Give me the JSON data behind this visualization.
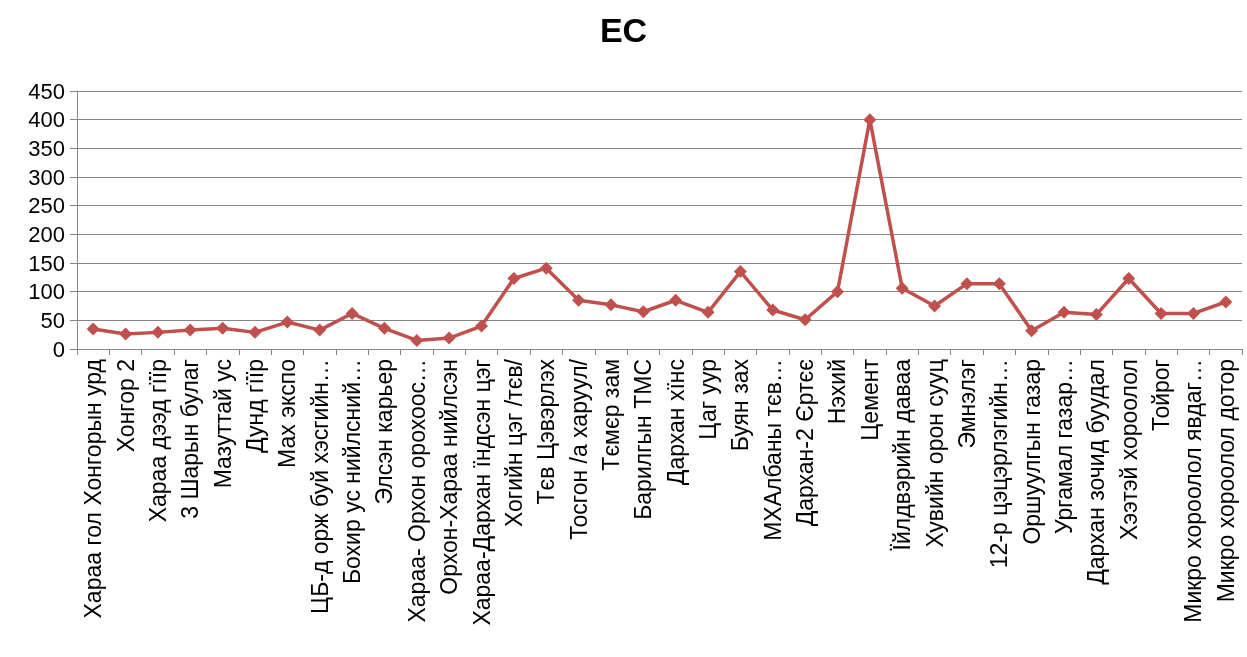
{
  "chart_data": {
    "type": "line",
    "title": "EC",
    "categories": [
      "Хараа гол Хонгорын урд",
      "Хонгор 2",
      "Хараа дээд гїїр",
      "3 Шарын булаг",
      "Мазуттай ус",
      "Дунд гїїр",
      "Мах экспо",
      "ЦБ-д орж буй хэсгийн…",
      "Бохир ус нийлсний…",
      "Элсэн карьер",
      "Хараа- Орхон орохоос…",
      "Орхон-Хараа нийлсэн",
      "Хараа-Дархан їндсэн цэг",
      "Хогийн цэг /тєв/",
      "Тєв Цэвэрлэх",
      "Тосгон /а харуул/",
      "Тємєр зам",
      "Барилгын ТМС",
      "Дархан хїнс",
      "Цаг уур",
      "Буян зах",
      "МХАлбаны тєв…",
      "Дархан-2 Єртєє",
      "Нэхий",
      "Цемент",
      "Їйлдвэрийн даваа",
      "Хувийн орон сууц",
      "Эмнэлэг",
      "12-р цэцэрлэгийн…",
      "Оршуулгын газар",
      "Ургамал газар…",
      "Дархан зочид буудал",
      "Хээтэй хороолол",
      "Тойрог",
      "Микро хороолол явдаг…",
      "Микро хороолол дотор"
    ],
    "series": [
      {
        "color": "#c0504d",
        "values": [
          35,
          26,
          29,
          33,
          36,
          29,
          47,
          33,
          62,
          36,
          15,
          19,
          40,
          123,
          141,
          85,
          77,
          65,
          85,
          64,
          135,
          68,
          51,
          100,
          400,
          106,
          75,
          114,
          114,
          32,
          64,
          60,
          123,
          62,
          62,
          82
        ]
      }
    ],
    "ylim": [
      0,
      450
    ],
    "yticks": [
      0,
      50,
      100,
      150,
      200,
      250,
      300,
      350,
      400,
      450
    ],
    "grid": "y",
    "marker": "diamond",
    "line_style": "solid"
  }
}
